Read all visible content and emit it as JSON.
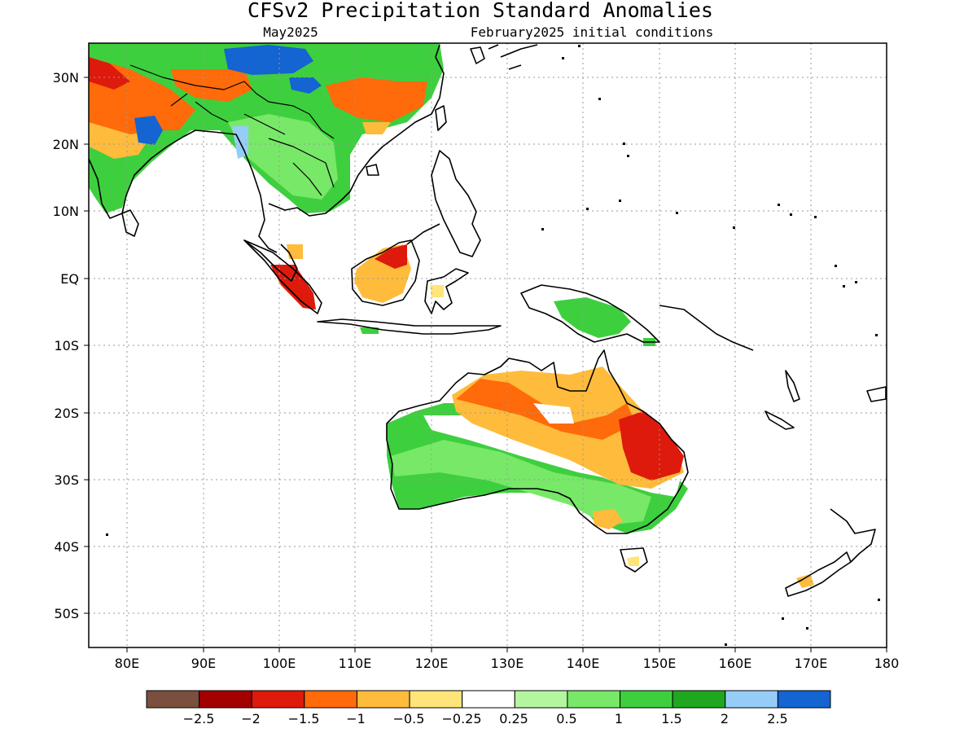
{
  "title": "CFSv2 Precipitation Standard Anomalies",
  "subtitle_left": "May2025",
  "subtitle_right": "February2025 initial conditions",
  "lat_labels": [
    "30N",
    "20N",
    "10N",
    "EQ",
    "10S",
    "20S",
    "30S",
    "40S",
    "50S"
  ],
  "lon_labels": [
    "80E",
    "90E",
    "100E",
    "110E",
    "120E",
    "130E",
    "140E",
    "150E",
    "160E",
    "170E",
    "180"
  ],
  "colorbar": {
    "colors": [
      "#7a4f3e",
      "#a30000",
      "#dd1a0b",
      "#ff6a0a",
      "#ffbb3b",
      "#ffe47a",
      "#ffffff",
      "#b4f5a0",
      "#78e868",
      "#3ecf3e",
      "#1fa81f",
      "#96cdf7",
      "#1464d2"
    ],
    "labels": [
      "−2.5",
      "−2",
      "−1.5",
      "−1",
      "−0.5",
      "−0.25",
      "0.25",
      "0.5",
      "1",
      "1.5",
      "2",
      "2.5"
    ]
  }
}
